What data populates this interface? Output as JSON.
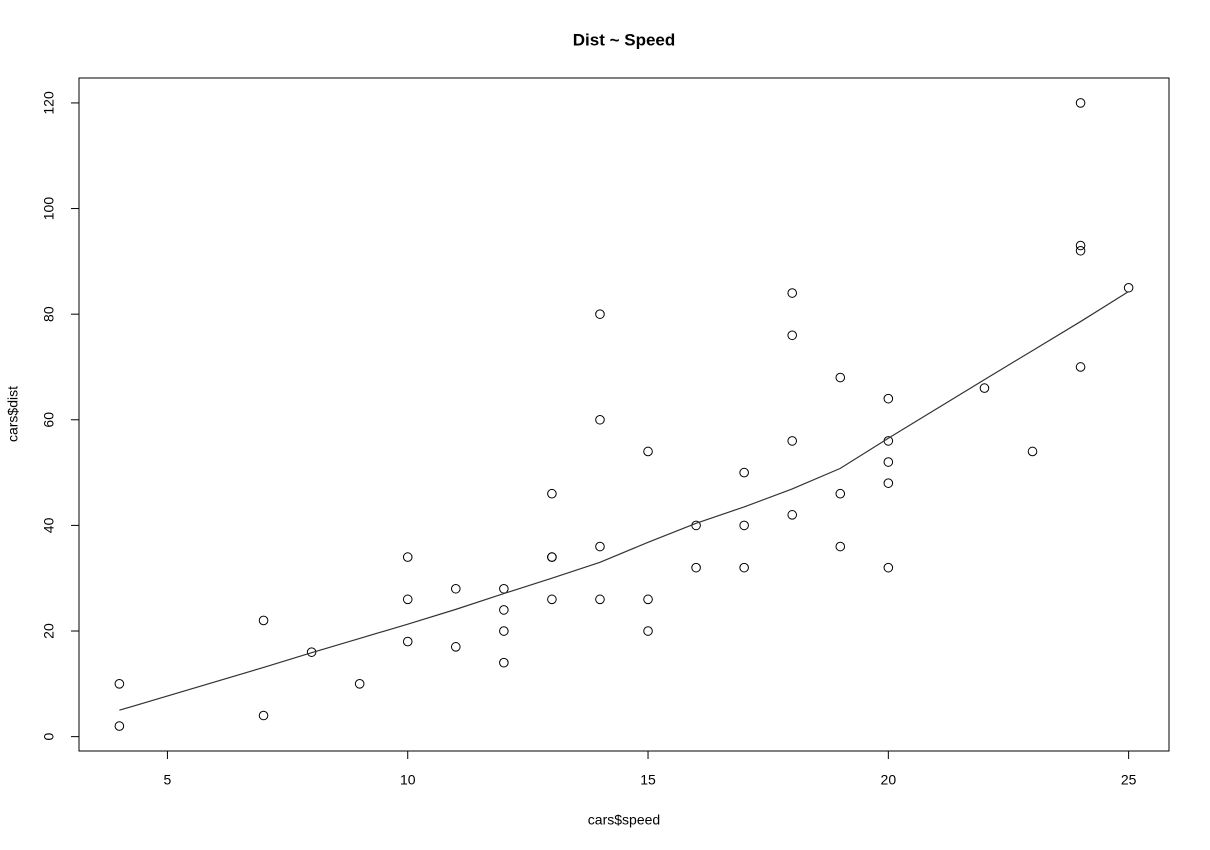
{
  "chart_data": {
    "type": "scatter",
    "title": "Dist ~ Speed",
    "xlabel": "cars$speed",
    "ylabel": "cars$dist",
    "xlim": [
      3.16,
      25.84
    ],
    "ylim": [
      -2.72,
      124.72
    ],
    "xticks": [
      5,
      10,
      15,
      20,
      25
    ],
    "yticks": [
      0,
      20,
      40,
      60,
      80,
      100,
      120
    ],
    "series": [
      {
        "type": "scatter",
        "color": "#000000",
        "x": [
          4,
          4,
          7,
          7,
          8,
          9,
          10,
          10,
          10,
          11,
          11,
          12,
          12,
          12,
          12,
          13,
          13,
          13,
          13,
          14,
          14,
          14,
          14,
          15,
          15,
          15,
          16,
          16,
          17,
          17,
          17,
          18,
          18,
          18,
          18,
          19,
          19,
          19,
          20,
          20,
          20,
          20,
          20,
          22,
          23,
          24,
          24,
          24,
          24,
          25
        ],
        "values": [
          2,
          10,
          4,
          22,
          16,
          10,
          18,
          26,
          34,
          17,
          28,
          14,
          20,
          24,
          28,
          26,
          34,
          34,
          46,
          26,
          36,
          60,
          80,
          20,
          26,
          54,
          32,
          40,
          32,
          40,
          50,
          42,
          56,
          76,
          84,
          36,
          46,
          68,
          32,
          48,
          52,
          56,
          64,
          66,
          54,
          70,
          92,
          93,
          120,
          85
        ]
      },
      {
        "type": "line",
        "color": "#333333",
        "x": [
          4,
          7,
          8,
          9,
          10,
          11,
          12,
          13,
          14,
          15,
          16,
          17,
          18,
          19,
          20,
          22,
          23,
          24,
          25
        ],
        "values": [
          5.0,
          13.1,
          15.9,
          18.6,
          21.3,
          24.1,
          27.1,
          30.0,
          33.0,
          36.8,
          40.4,
          43.5,
          46.9,
          50.8,
          56.5,
          67.6,
          73.1,
          78.6,
          84.3
        ]
      }
    ]
  }
}
